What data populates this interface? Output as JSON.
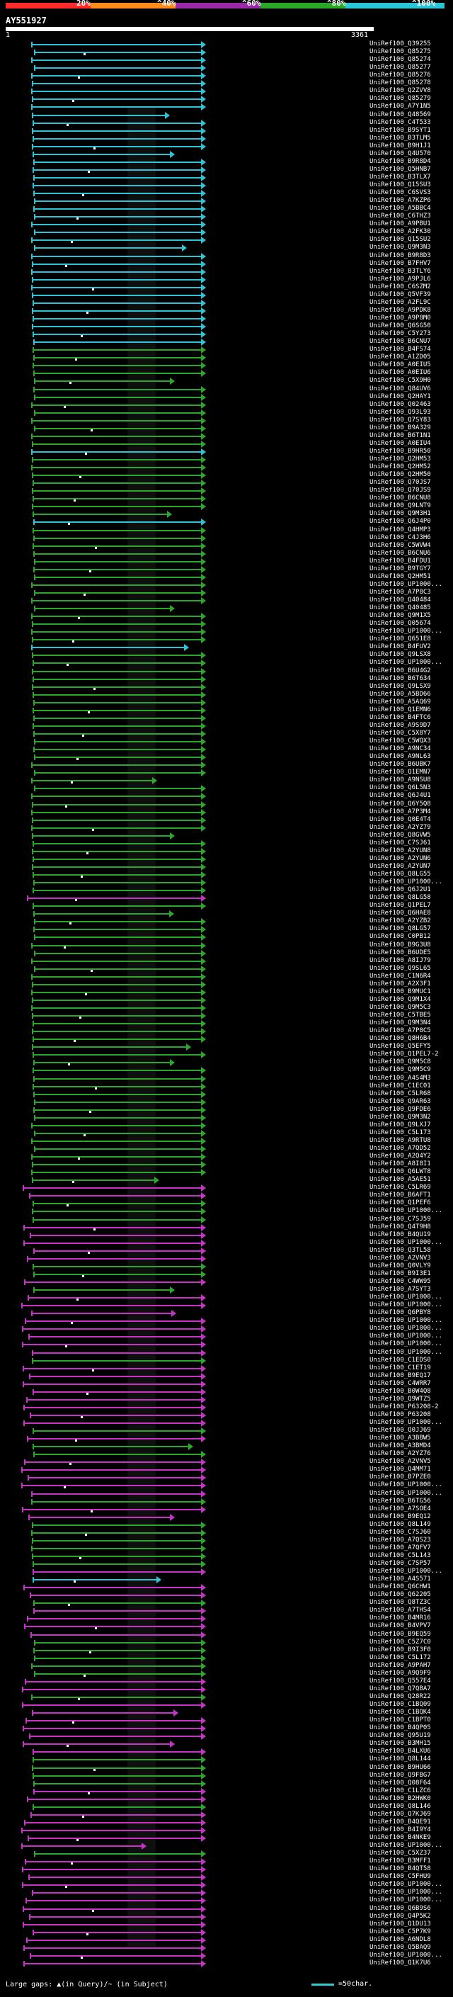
{
  "legend": {
    "labels": [
      "20%",
      "^40%",
      "^60%",
      "^80%",
      "^100%"
    ],
    "colors": [
      "#ff2a2a",
      "#ff8c1a",
      "#9a2aa8",
      "#2aa82a",
      "#2ac6d8"
    ]
  },
  "query": {
    "id": "AY551927",
    "start": "1",
    "end": "3361"
  },
  "hits": [
    {
      "label": "UniRef100_Q39255",
      "color": "#2ac6d8"
    },
    {
      "label": "UniRef100_Q85275",
      "color": "#2ac6d8"
    },
    {
      "label": "UniRef100_Q85274",
      "color": "#2ac6d8"
    },
    {
      "label": "UniRef100_Q85277",
      "color": "#2ac6d8"
    },
    {
      "label": "UniRef100_Q85276",
      "color": "#2ac6d8"
    },
    {
      "label": "UniRef100_Q85278",
      "color": "#2ac6d8"
    },
    {
      "label": "UniRef100_Q2ZVV8",
      "color": "#2ac6d8"
    },
    {
      "label": "UniRef100_Q85279",
      "color": "#2ac6d8"
    },
    {
      "label": "UniRef100_A7Y1N5",
      "color": "#2ac6d8"
    },
    {
      "label": "UniRef100_Q48569",
      "color": "#2ac6d8"
    },
    {
      "label": "UniRef100_C4T533",
      "color": "#2ac6d8"
    },
    {
      "label": "UniRef100_B9SYT1",
      "color": "#2ac6d8"
    },
    {
      "label": "UniRef100_B3TLM5",
      "color": "#2ac6d8"
    },
    {
      "label": "UniRef100_B9H1J1",
      "color": "#2ac6d8"
    },
    {
      "label": "UniRef100_Q4U570",
      "color": "#2ac6d8"
    },
    {
      "label": "UniRef100_B9R8D4",
      "color": "#2ac6d8"
    },
    {
      "label": "UniRef100_Q5HNB7",
      "color": "#2ac6d8"
    },
    {
      "label": "UniRef100_B3TLX7",
      "color": "#2ac6d8"
    },
    {
      "label": "UniRef100_Q15SU3",
      "color": "#2ac6d8"
    },
    {
      "label": "UniRef100_C6SVS3",
      "color": "#2ac6d8"
    },
    {
      "label": "UniRef100_A7KZP6",
      "color": "#2ac6d8"
    },
    {
      "label": "UniRef100_A5BBC4",
      "color": "#2ac6d8"
    },
    {
      "label": "UniRef100_C6THZ3",
      "color": "#2ac6d8"
    },
    {
      "label": "UniRef100_A9PBU1",
      "color": "#2ac6d8"
    },
    {
      "label": "UniRef100_A2FK30",
      "color": "#2ac6d8"
    },
    {
      "label": "UniRef100_Q15SU2",
      "color": "#2ac6d8"
    },
    {
      "label": "UniRef100_Q9M3N3",
      "color": "#2ac6d8"
    },
    {
      "label": "UniRef100_B9R8D3",
      "color": "#2ac6d8"
    },
    {
      "label": "UniRef100_B7FHV7",
      "color": "#2ac6d8"
    },
    {
      "label": "UniRef100_B3TLY6",
      "color": "#2ac6d8"
    },
    {
      "label": "UniRef100_A9PJL6",
      "color": "#2ac6d8"
    },
    {
      "label": "UniRef100_C6SZM2",
      "color": "#2ac6d8"
    },
    {
      "label": "UniRef100_Q5VF39",
      "color": "#2ac6d8"
    },
    {
      "label": "UniRef100_A2FL9C",
      "color": "#2ac6d8"
    },
    {
      "label": "UniRef100_A9PDK8",
      "color": "#2ac6d8"
    },
    {
      "label": "UniRef100_A9P8M0",
      "color": "#2ac6d8"
    },
    {
      "label": "UniRef100_Q6SG50",
      "color": "#2ac6d8"
    },
    {
      "label": "UniRef100_C5Y273",
      "color": "#2ac6d8"
    },
    {
      "label": "UniRef100_B6CNU7",
      "color": "#2ac6d8"
    },
    {
      "label": "UniRef100_B4FS74",
      "color": "#2aa82a"
    },
    {
      "label": "UniRef100_A1ZD05",
      "color": "#2aa82a"
    },
    {
      "label": "UniRef100_A0EIU5",
      "color": "#2aa82a"
    },
    {
      "label": "UniRef100_A0EIU6",
      "color": "#2aa82a"
    },
    {
      "label": "UniRef100_C5X9H0",
      "color": "#2aa82a"
    },
    {
      "label": "UniRef100_Q84UV6",
      "color": "#2aa82a"
    },
    {
      "label": "UniRef100_Q2HAY1",
      "color": "#2aa82a"
    },
    {
      "label": "UniRef100_Q02463",
      "color": "#2aa82a"
    },
    {
      "label": "UniRef100_Q93L93",
      "color": "#2aa82a"
    },
    {
      "label": "UniRef100_Q7SY83",
      "color": "#2aa82a"
    },
    {
      "label": "UniRef100_B9A329",
      "color": "#2aa82a"
    },
    {
      "label": "UniRef100_B6T1N1",
      "color": "#2aa82a"
    },
    {
      "label": "UniRef100_A0EIU4",
      "color": "#2aa82a"
    },
    {
      "label": "UniRef100_B9HR50",
      "color": "#2ac6d8"
    },
    {
      "label": "UniRef100_Q2HM53",
      "color": "#2aa82a"
    },
    {
      "label": "UniRef100_Q2HM52",
      "color": "#2aa82a"
    },
    {
      "label": "UniRef100_Q2HM50",
      "color": "#2aa82a"
    },
    {
      "label": "UniRef100_Q70JS7",
      "color": "#2aa82a"
    },
    {
      "label": "UniRef100_Q70JS9",
      "color": "#2aa82a"
    },
    {
      "label": "UniRef100_B6CNU8",
      "color": "#2aa82a"
    },
    {
      "label": "UniRef100_Q9LNT9",
      "color": "#2aa82a"
    },
    {
      "label": "UniRef100_Q9M3H1",
      "color": "#2aa82a"
    },
    {
      "label": "UniRef100_Q6J4P0",
      "color": "#2ac6d8"
    },
    {
      "label": "UniRef100_Q4HMP3",
      "color": "#2aa82a"
    },
    {
      "label": "UniRef100_C4J3H6",
      "color": "#2aa82a"
    },
    {
      "label": "UniRef100_C5WVW4",
      "color": "#2aa82a"
    },
    {
      "label": "UniRef100_B6CNU6",
      "color": "#2aa82a"
    },
    {
      "label": "UniRef100_B4FDU1",
      "color": "#2aa82a"
    },
    {
      "label": "UniRef100_B9TGY7",
      "color": "#2aa82a"
    },
    {
      "label": "UniRef100_Q2HM51",
      "color": "#2aa82a"
    },
    {
      "label": "UniRef100_UP1000...",
      "color": "#2aa82a"
    },
    {
      "label": "UniRef100_A7P8C3",
      "color": "#2aa82a"
    },
    {
      "label": "UniRef100_Q40484",
      "color": "#2aa82a"
    },
    {
      "label": "UniRef100_Q40485",
      "color": "#2aa82a"
    },
    {
      "label": "UniRef100_Q9M1X5",
      "color": "#2aa82a"
    },
    {
      "label": "UniRef100_Q05674",
      "color": "#2aa82a"
    },
    {
      "label": "UniRef100_UP1000...",
      "color": "#2aa82a"
    },
    {
      "label": "UniRef100_Q651E8",
      "color": "#2aa82a"
    },
    {
      "label": "UniRef100_B4FUV2",
      "color": "#2ac6d8"
    },
    {
      "label": "UniRef100_Q9LSX8",
      "color": "#2aa82a"
    },
    {
      "label": "UniRef100_UP1000...",
      "color": "#2aa82a"
    },
    {
      "label": "UniRef100_B6U4G2",
      "color": "#2aa82a"
    },
    {
      "label": "UniRef100_B6T634",
      "color": "#2aa82a"
    },
    {
      "label": "UniRef100_Q9LSX9",
      "color": "#2aa82a"
    },
    {
      "label": "UniRef100_A5BD66",
      "color": "#2aa82a"
    },
    {
      "label": "UniRef100_A5AQ69",
      "color": "#2aa82a"
    },
    {
      "label": "UniRef100_Q1EMN6",
      "color": "#2aa82a"
    },
    {
      "label": "UniRef100_B4FTC6",
      "color": "#2aa82a"
    },
    {
      "label": "UniRef100_A9S9D7",
      "color": "#2aa82a"
    },
    {
      "label": "UniRef100_C5X8Y7",
      "color": "#2aa82a"
    },
    {
      "label": "UniRef100_C5WQX3",
      "color": "#2aa82a"
    },
    {
      "label": "UniRef100_A9NC34",
      "color": "#2aa82a"
    },
    {
      "label": "UniRef100_A9NL63",
      "color": "#2aa82a"
    },
    {
      "label": "UniRef100_B6UBK7",
      "color": "#2aa82a"
    },
    {
      "label": "UniRef100_Q1EMN7",
      "color": "#2aa82a"
    },
    {
      "label": "UniRef100_A9NSU8",
      "color": "#2aa82a"
    },
    {
      "label": "UniRef100_Q6L5N3",
      "color": "#2aa82a"
    },
    {
      "label": "UniRef100_Q6J4U1",
      "color": "#2aa82a"
    },
    {
      "label": "UniRef100_Q6Y5Q8",
      "color": "#2aa82a"
    },
    {
      "label": "UniRef100_A7P3M4",
      "color": "#2aa82a"
    },
    {
      "label": "UniRef100_Q0E4T4",
      "color": "#2aa82a"
    },
    {
      "label": "UniRef100_A2YZ79",
      "color": "#2aa82a"
    },
    {
      "label": "UniRef100_Q8GVW5",
      "color": "#2aa82a"
    },
    {
      "label": "UniRef100_C7SJ61",
      "color": "#2aa82a"
    },
    {
      "label": "UniRef100_A2YUN8",
      "color": "#2aa82a"
    },
    {
      "label": "UniRef100_A2YUN6",
      "color": "#2aa82a"
    },
    {
      "label": "UniRef100_A2YUN7",
      "color": "#2aa82a"
    },
    {
      "label": "UniRef100_Q8LG55",
      "color": "#2aa82a"
    },
    {
      "label": "UniRef100_UP1000...",
      "color": "#2aa82a"
    },
    {
      "label": "UniRef100_Q6J2U1",
      "color": "#2aa82a"
    },
    {
      "label": "UniRef100_Q8LG58",
      "color": "#c832c8"
    },
    {
      "label": "UniRef100_Q1PEL7",
      "color": "#2aa82a"
    },
    {
      "label": "UniRef100_Q6HAE8",
      "color": "#2aa82a"
    },
    {
      "label": "UniRef100_A2YZB2",
      "color": "#2aa82a"
    },
    {
      "label": "UniRef100_Q8LG57",
      "color": "#2aa82a"
    },
    {
      "label": "UniRef100_C0PB12",
      "color": "#2aa82a"
    },
    {
      "label": "UniRef100_B9G3U8",
      "color": "#2aa82a"
    },
    {
      "label": "UniRef100_B6UDE5",
      "color": "#2aa82a"
    },
    {
      "label": "UniRef100_A8IJ79",
      "color": "#2aa82a"
    },
    {
      "label": "UniRef100_Q9SL65",
      "color": "#2aa82a"
    },
    {
      "label": "UniRef100_C1N6R4",
      "color": "#2aa82a"
    },
    {
      "label": "UniRef100_A2X3F1",
      "color": "#2aa82a"
    },
    {
      "label": "UniRef100_B9MUC1",
      "color": "#2aa82a"
    },
    {
      "label": "UniRef100_Q9M1X4",
      "color": "#2aa82a"
    },
    {
      "label": "UniRef100_Q9M5C3",
      "color": "#2aa82a"
    },
    {
      "label": "UniRef100_C5TBE5",
      "color": "#2aa82a"
    },
    {
      "label": "UniRef100_Q9M3N4",
      "color": "#2aa82a"
    },
    {
      "label": "UniRef100_A7P8C5",
      "color": "#2aa82a"
    },
    {
      "label": "UniRef100_Q8H6B4",
      "color": "#2aa82a"
    },
    {
      "label": "UniRef100_Q5EFY5",
      "color": "#2aa82a"
    },
    {
      "label": "UniRef100_Q1PEL7-2",
      "color": "#2aa82a"
    },
    {
      "label": "UniRef100_Q9M5C8",
      "color": "#2aa82a"
    },
    {
      "label": "UniRef100_Q9M5C9",
      "color": "#2aa82a"
    },
    {
      "label": "UniRef100_A4S4M3",
      "color": "#2aa82a"
    },
    {
      "label": "UniRef100_C1EC01",
      "color": "#2aa82a"
    },
    {
      "label": "UniRef100_C5LR68",
      "color": "#2aa82a"
    },
    {
      "label": "UniRef100_Q9AR63",
      "color": "#2aa82a"
    },
    {
      "label": "UniRef100_Q9FDE6",
      "color": "#2aa82a"
    },
    {
      "label": "UniRef100_Q9M3N2",
      "color": "#2aa82a"
    },
    {
      "label": "UniRef100_Q9LXJ7",
      "color": "#2aa82a"
    },
    {
      "label": "UniRef100_C5L173",
      "color": "#2aa82a"
    },
    {
      "label": "UniRef100_A9RTU8",
      "color": "#2aa82a"
    },
    {
      "label": "UniRef100_A7QD52",
      "color": "#2aa82a"
    },
    {
      "label": "UniRef100_A2Q4Y2",
      "color": "#2aa82a"
    },
    {
      "label": "UniRef100_A8I8I1",
      "color": "#2aa82a"
    },
    {
      "label": "UniRef100_Q6LWT8",
      "color": "#2aa82a"
    },
    {
      "label": "UniRef100_A5AE51",
      "color": "#2aa82a"
    },
    {
      "label": "UniRef100_C5LR69",
      "color": "#c832c8"
    },
    {
      "label": "UniRef100_B6AFT1",
      "color": "#c832c8"
    },
    {
      "label": "UniRef100_Q1PEF6",
      "color": "#2aa82a"
    },
    {
      "label": "UniRef100_UP1000...",
      "color": "#2aa82a"
    },
    {
      "label": "UniRef100_C7SJ59",
      "color": "#2aa82a"
    },
    {
      "label": "UniRef100_Q4T9H8",
      "color": "#c832c8"
    },
    {
      "label": "UniRef100_B4QU19",
      "color": "#c832c8"
    },
    {
      "label": "UniRef100_UP1000...",
      "color": "#c832c8"
    },
    {
      "label": "UniRef100_Q3TL58",
      "color": "#c832c8"
    },
    {
      "label": "UniRef100_A2VNV3",
      "color": "#c832c8"
    },
    {
      "label": "UniRef100_Q0VLY9",
      "color": "#2aa82a"
    },
    {
      "label": "UniRef100_B9I3E1",
      "color": "#2aa82a"
    },
    {
      "label": "UniRef100_C4WW95",
      "color": "#c832c8"
    },
    {
      "label": "UniRef100_A7SYT3",
      "color": "#2aa82a"
    },
    {
      "label": "UniRef100_UP1000...",
      "color": "#c832c8"
    },
    {
      "label": "UniRef100_UP1000...",
      "color": "#c832c8"
    },
    {
      "label": "UniRef100_Q6PBY8",
      "color": "#c832c8"
    },
    {
      "label": "UniRef100_UP1000...",
      "color": "#c832c8"
    },
    {
      "label": "UniRef100_UP1000...",
      "color": "#c832c8"
    },
    {
      "label": "UniRef100_UP1000...",
      "color": "#c832c8"
    },
    {
      "label": "UniRef100_UP1000...",
      "color": "#c832c8"
    },
    {
      "label": "UniRef100_UP1000...",
      "color": "#c832c8"
    },
    {
      "label": "UniRef100_C1EDS0",
      "color": "#2aa82a"
    },
    {
      "label": "UniRef100_C1ET19",
      "color": "#c832c8"
    },
    {
      "label": "UniRef100_B9EQ17",
      "color": "#c832c8"
    },
    {
      "label": "UniRef100_C4WRR7",
      "color": "#c832c8"
    },
    {
      "label": "UniRef100_B0W4Q8",
      "color": "#c832c8"
    },
    {
      "label": "UniRef100_Q9WTZ5",
      "color": "#c832c8"
    },
    {
      "label": "UniRef100_P63208-2",
      "color": "#c832c8"
    },
    {
      "label": "UniRef100_P63208",
      "color": "#c832c8"
    },
    {
      "label": "UniRef100_UP1000...",
      "color": "#c832c8"
    },
    {
      "label": "UniRef100_Q0JJ69",
      "color": "#2aa82a"
    },
    {
      "label": "UniRef100_A3BBW5",
      "color": "#c832c8"
    },
    {
      "label": "UniRef100_A3BMD4",
      "color": "#2aa82a"
    },
    {
      "label": "UniRef100_A2YZ76",
      "color": "#2aa82a"
    },
    {
      "label": "UniRef100_A2VNV5",
      "color": "#c832c8"
    },
    {
      "label": "UniRef100_Q4MM71",
      "color": "#c832c8"
    },
    {
      "label": "UniRef100_B7PZE0",
      "color": "#c832c8"
    },
    {
      "label": "UniRef100_UP1000...",
      "color": "#c832c8"
    },
    {
      "label": "UniRef100_UP1000...",
      "color": "#c832c8"
    },
    {
      "label": "UniRef100_B6TG56",
      "color": "#2aa82a"
    },
    {
      "label": "UniRef100_A7SOE4",
      "color": "#c832c8"
    },
    {
      "label": "UniRef100_B9EQ12",
      "color": "#c832c8"
    },
    {
      "label": "UniRef100_Q8L149",
      "color": "#2aa82a"
    },
    {
      "label": "UniRef100_C7SJ60",
      "color": "#2aa82a"
    },
    {
      "label": "UniRef100_A7QS23",
      "color": "#2aa82a"
    },
    {
      "label": "UniRef100_A7QFV7",
      "color": "#2aa82a"
    },
    {
      "label": "UniRef100_C5L143",
      "color": "#2aa82a"
    },
    {
      "label": "UniRef100_C7SP57",
      "color": "#2aa82a"
    },
    {
      "label": "UniRef100_UP1000...",
      "color": "#c832c8"
    },
    {
      "label": "UniRef100_A4S571",
      "color": "#2ac6d8"
    },
    {
      "label": "UniRef100_Q6CHW1",
      "color": "#c832c8"
    },
    {
      "label": "UniRef100_Q62205",
      "color": "#c832c8"
    },
    {
      "label": "UniRef100_Q8TZ3C",
      "color": "#2aa82a"
    },
    {
      "label": "UniRef100_A7THS4",
      "color": "#c832c8"
    },
    {
      "label": "UniRef100_B4MR16",
      "color": "#c832c8"
    },
    {
      "label": "UniRef100_B4VPV7",
      "color": "#c832c8"
    },
    {
      "label": "UniRef100_B9EQ59",
      "color": "#c832c8"
    },
    {
      "label": "UniRef100_C5Z7C0",
      "color": "#2aa82a"
    },
    {
      "label": "UniRef100_B9I3F0",
      "color": "#2aa82a"
    },
    {
      "label": "UniRef100_C5L172",
      "color": "#2aa82a"
    },
    {
      "label": "UniRef100_A9PAH7",
      "color": "#2aa82a"
    },
    {
      "label": "UniRef100_A9Q9F9",
      "color": "#2aa82a"
    },
    {
      "label": "UniRef100_Q557E4",
      "color": "#c832c8"
    },
    {
      "label": "UniRef100_Q7QBA7",
      "color": "#c832c8"
    },
    {
      "label": "UniRef100_Q28R22",
      "color": "#2aa82a"
    },
    {
      "label": "UniRef100_C1BQ09",
      "color": "#c832c8"
    },
    {
      "label": "UniRef100_C1BQK4",
      "color": "#c832c8"
    },
    {
      "label": "UniRef100_C1BPT0",
      "color": "#c832c8"
    },
    {
      "label": "UniRef100_B4QP05",
      "color": "#c832c8"
    },
    {
      "label": "UniRef100_Q95U19",
      "color": "#c832c8"
    },
    {
      "label": "UniRef100_B3MH15",
      "color": "#c832c8"
    },
    {
      "label": "UniRef100_B4LXU6",
      "color": "#c832c8"
    },
    {
      "label": "UniRef100_Q8L144",
      "color": "#2aa82a"
    },
    {
      "label": "UniRef100_B9HU66",
      "color": "#2aa82a"
    },
    {
      "label": "UniRef100_Q9FBG7",
      "color": "#2aa82a"
    },
    {
      "label": "UniRef100_Q08F64",
      "color": "#2aa82a"
    },
    {
      "label": "UniRef100_C1LZC6",
      "color": "#c832c8"
    },
    {
      "label": "UniRef100_B2HWK0",
      "color": "#c832c8"
    },
    {
      "label": "UniRef100_Q8L146",
      "color": "#2aa82a"
    },
    {
      "label": "UniRef100_Q7KJ69",
      "color": "#c832c8"
    },
    {
      "label": "UniRef100_B4QE91",
      "color": "#c832c8"
    },
    {
      "label": "UniRef100_B4I9Y4",
      "color": "#c832c8"
    },
    {
      "label": "UniRef100_B4NKE9",
      "color": "#c832c8"
    },
    {
      "label": "UniRef100_UP1000...",
      "color": "#c832c8"
    },
    {
      "label": "UniRef100_C5XZ37",
      "color": "#2aa82a"
    },
    {
      "label": "UniRef100_B3MFF1",
      "color": "#c832c8"
    },
    {
      "label": "UniRef100_B4QT58",
      "color": "#c832c8"
    },
    {
      "label": "UniRef100_C5FHU9",
      "color": "#c832c8"
    },
    {
      "label": "UniRef100_UP1000...",
      "color": "#c832c8"
    },
    {
      "label": "UniRef100_UP1000...",
      "color": "#c832c8"
    },
    {
      "label": "UniRef100_UP1000...",
      "color": "#c832c8"
    },
    {
      "label": "UniRef100_Q6B9S6",
      "color": "#c832c8"
    },
    {
      "label": "UniRef100_Q4P5K2",
      "color": "#c832c8"
    },
    {
      "label": "UniRef100_Q1DU13",
      "color": "#c832c8"
    },
    {
      "label": "UniRef100_C5P7K9",
      "color": "#c832c8"
    },
    {
      "label": "UniRef100_A6NDL8",
      "color": "#c832c8"
    },
    {
      "label": "UniRef100_Q5BAQ9",
      "color": "#c832c8"
    },
    {
      "label": "UniRef100_UP1000...",
      "color": "#c832c8"
    },
    {
      "label": "UniRef100_Q1K7U6",
      "color": "#c832c8"
    }
  ],
  "footer": {
    "gaps": "Large gaps: ▲(in Query)/~ (in Subject)",
    "scale": "=50char."
  }
}
